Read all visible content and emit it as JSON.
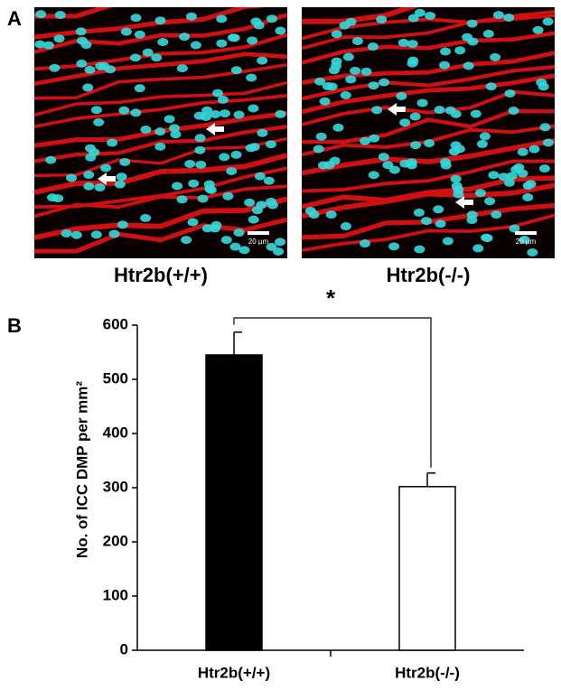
{
  "panel_a": {
    "label": "A",
    "images": [
      {
        "caption": "Htr2b(+/+)",
        "scale_bar": "20 µm"
      },
      {
        "caption": "Htr2b(-/-)",
        "scale_bar": "20 µm"
      }
    ]
  },
  "chart_data": {
    "type": "bar",
    "panel_label": "B",
    "ylabel": "No. of ICC DMP per mm²",
    "categories": [
      "Htr2b(+/+)",
      "Htr2b(-/-)"
    ],
    "values": [
      545,
      302
    ],
    "errors": [
      42,
      25
    ],
    "colors": [
      "#000000",
      "#ffffff"
    ],
    "ylim": [
      0,
      600
    ],
    "yticks": [
      0,
      100,
      200,
      300,
      400,
      500,
      600
    ],
    "annotation": "*"
  }
}
